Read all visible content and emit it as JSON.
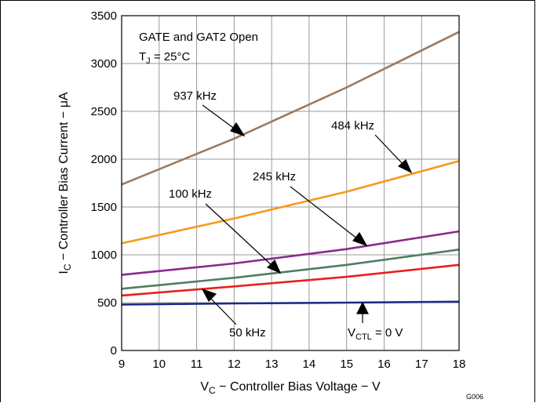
{
  "chart_data": {
    "type": "line",
    "xlabel": {
      "main": "V",
      "sub": "C",
      "rest": " − Controller Bias Voltage − V"
    },
    "ylabel": {
      "main": "I",
      "sub": "C",
      "rest": " − Controller Bias Current − μA"
    },
    "xlim": [
      9,
      18
    ],
    "ylim": [
      0,
      3500
    ],
    "x_ticks": [
      9,
      10,
      11,
      12,
      13,
      14,
      15,
      16,
      17,
      18
    ],
    "y_ticks": [
      0,
      500,
      1000,
      1500,
      2000,
      2500,
      3000,
      3500
    ],
    "grid": true,
    "conditions": {
      "line1": "GATE and GAT2 Open",
      "line2": {
        "main": "T",
        "sub": "J",
        "rest": " = 25°C"
      }
    },
    "figure_id": "G006",
    "series": [
      {
        "name": "937 kHz",
        "color": "#9c7a5e",
        "x": [
          9,
          12,
          15,
          18
        ],
        "y": [
          1735,
          2215,
          2750,
          3330
        ]
      },
      {
        "name": "484 kHz",
        "color": "#f59a1a",
        "x": [
          9,
          12,
          15,
          18
        ],
        "y": [
          1120,
          1380,
          1660,
          1980
        ]
      },
      {
        "name": "245 kHz",
        "color": "#8a2a8c",
        "x": [
          9,
          12,
          15,
          18
        ],
        "y": [
          790,
          910,
          1060,
          1245
        ]
      },
      {
        "name": "100 kHz",
        "color": "#4f7f60",
        "x": [
          9,
          12,
          15,
          18
        ],
        "y": [
          645,
          760,
          895,
          1055
        ]
      },
      {
        "name": "50 kHz",
        "color": "#e8201e",
        "x": [
          9,
          12,
          15,
          18
        ],
        "y": [
          575,
          670,
          770,
          895
        ]
      },
      {
        "name": {
          "main": "V",
          "sub": "CTL",
          "rest": " = 0 V"
        },
        "color": "#1f2a8a",
        "x": [
          9,
          12,
          15,
          18
        ],
        "y": [
          480,
          492,
          500,
          510
        ]
      }
    ]
  }
}
